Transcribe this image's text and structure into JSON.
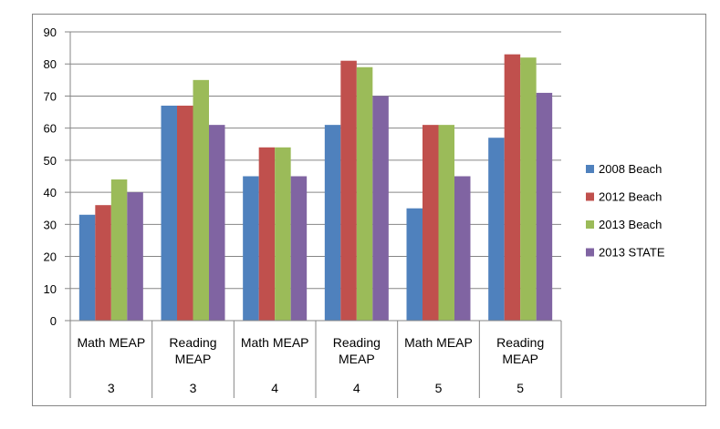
{
  "chart_data": {
    "type": "bar",
    "title": "",
    "xlabel": "",
    "ylabel": "",
    "ylim": [
      0,
      90
    ],
    "yticks": [
      0,
      10,
      20,
      30,
      40,
      50,
      60,
      70,
      80,
      90
    ],
    "grid": true,
    "legend_position": "right",
    "categories": [
      {
        "subject": "Math MEAP",
        "grade": "3"
      },
      {
        "subject": "Reading MEAP",
        "grade": "3"
      },
      {
        "subject": "Math MEAP",
        "grade": "4"
      },
      {
        "subject": "Reading MEAP",
        "grade": "4"
      },
      {
        "subject": "Math MEAP",
        "grade": "5"
      },
      {
        "subject": "Reading MEAP",
        "grade": "5"
      }
    ],
    "series": [
      {
        "name": "2008 Beach",
        "color": "#4f81bd",
        "values": [
          33,
          67,
          45,
          61,
          35,
          57
        ]
      },
      {
        "name": "2012 Beach",
        "color": "#c0504d",
        "values": [
          36,
          67,
          54,
          81,
          61,
          83
        ]
      },
      {
        "name": "2013 Beach",
        "color": "#9bbb59",
        "values": [
          44,
          75,
          54,
          79,
          61,
          82
        ]
      },
      {
        "name": "2013 STATE",
        "color": "#8064a2",
        "values": [
          40,
          61,
          45,
          70,
          45,
          71
        ]
      }
    ]
  }
}
